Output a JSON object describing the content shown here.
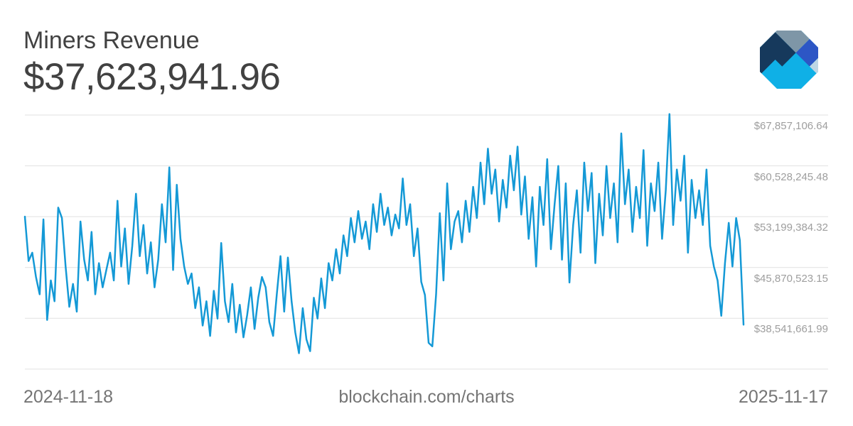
{
  "header": {
    "title": "Miners Revenue",
    "value": "$37,623,941.96"
  },
  "footer": {
    "start_date": "2024-11-18",
    "end_date": "2025-11-17",
    "source": "blockchain.com/charts"
  },
  "logo": {
    "name": "blockchain-com-logo",
    "colors": {
      "slate": "#7e96a7",
      "navy": "#16395c",
      "royal": "#2d56c5",
      "pale": "#bdd6e4",
      "cyan": "#0fb0e6"
    }
  },
  "colors": {
    "background": "#ffffff",
    "line": "#1499d6",
    "grid": "#e1e1e1",
    "heading_text": "#414141",
    "axis_label": "#9e9e9e",
    "footer_text": "#757575"
  },
  "chart_data": {
    "type": "line",
    "title": "Miners Revenue",
    "current_value": "$37,623,941.96",
    "x_start": "2024-11-18",
    "x_end": "2025-11-17",
    "x_unit": "date (daily, one year)",
    "y_unit": "USD (millions)",
    "grid": "horizontal-only",
    "legend": "none",
    "ylim_musd": [
      31.212801,
      68.6
    ],
    "y_gridlines": [
      {
        "label": "$67,857,106.64",
        "value_musd": 67.857107
      },
      {
        "label": "$60,528,245.48",
        "value_musd": 60.528245
      },
      {
        "label": "$53,199,384.32",
        "value_musd": 53.199384
      },
      {
        "label": "$45,870,523.15",
        "value_musd": 45.870523
      },
      {
        "label": "$38,541,661.99",
        "value_musd": 38.541662
      },
      {
        "label": "",
        "value_musd": 31.212801
      }
    ],
    "series": [
      {
        "name": "Miners Revenue (USD, millions)",
        "values_musd": [
          53.2,
          46.8,
          48.0,
          44.5,
          42.0,
          52.8,
          38.3,
          44.0,
          41.0,
          54.5,
          53.0,
          46.0,
          40.2,
          43.5,
          39.5,
          52.5,
          47.0,
          44.0,
          51.0,
          42.0,
          46.5,
          43.0,
          45.5,
          48.0,
          44.0,
          55.5,
          46.0,
          51.5,
          43.5,
          49.0,
          56.5,
          47.5,
          52.0,
          45.0,
          49.5,
          43.0,
          47.0,
          55.0,
          49.5,
          60.3,
          45.5,
          57.8,
          50.0,
          46.0,
          43.5,
          45.0,
          40.0,
          43.0,
          37.5,
          41.0,
          36.0,
          42.5,
          38.5,
          49.4,
          41.0,
          38.0,
          43.5,
          36.5,
          40.5,
          35.8,
          39.0,
          43.0,
          37.0,
          41.5,
          44.5,
          43.0,
          38.0,
          36.0,
          42.0,
          47.5,
          39.5,
          47.3,
          41.0,
          36.5,
          33.5,
          40.0,
          35.5,
          33.8,
          41.5,
          38.5,
          44.3,
          40.0,
          46.5,
          44.0,
          48.5,
          45.0,
          50.5,
          47.5,
          53.0,
          49.5,
          54.0,
          50.0,
          52.5,
          48.5,
          55.0,
          51.0,
          56.5,
          52.0,
          54.5,
          50.5,
          53.5,
          51.5,
          58.7,
          52.0,
          55.0,
          47.5,
          51.5,
          43.8,
          41.9,
          35.0,
          34.5,
          42.0,
          53.7,
          44.0,
          58.0,
          48.5,
          52.5,
          54.0,
          49.5,
          55.5,
          51.0,
          57.5,
          53.0,
          61.0,
          55.0,
          63.0,
          56.5,
          60.0,
          52.5,
          58.5,
          54.5,
          62.0,
          57.0,
          63.3,
          53.5,
          59.0,
          50.0,
          56.0,
          46.0,
          57.5,
          52.0,
          61.5,
          48.5,
          55.0,
          60.5,
          47.0,
          58.0,
          43.7,
          52.0,
          57.0,
          48.0,
          61.0,
          54.0,
          59.5,
          46.5,
          56.5,
          50.5,
          60.5,
          53.0,
          58.0,
          49.5,
          65.2,
          55.0,
          60.0,
          51.0,
          57.5,
          53.0,
          62.8,
          49.0,
          58.0,
          54.0,
          61.0,
          50.0,
          57.0,
          68.0,
          52.0,
          60.0,
          55.5,
          62.0,
          48.0,
          58.5,
          53.0,
          57.0,
          52.0,
          60.0,
          49.0,
          46.0,
          44.0,
          38.9,
          46.5,
          52.3,
          46.0,
          53.0,
          49.8,
          37.62
        ]
      }
    ]
  }
}
